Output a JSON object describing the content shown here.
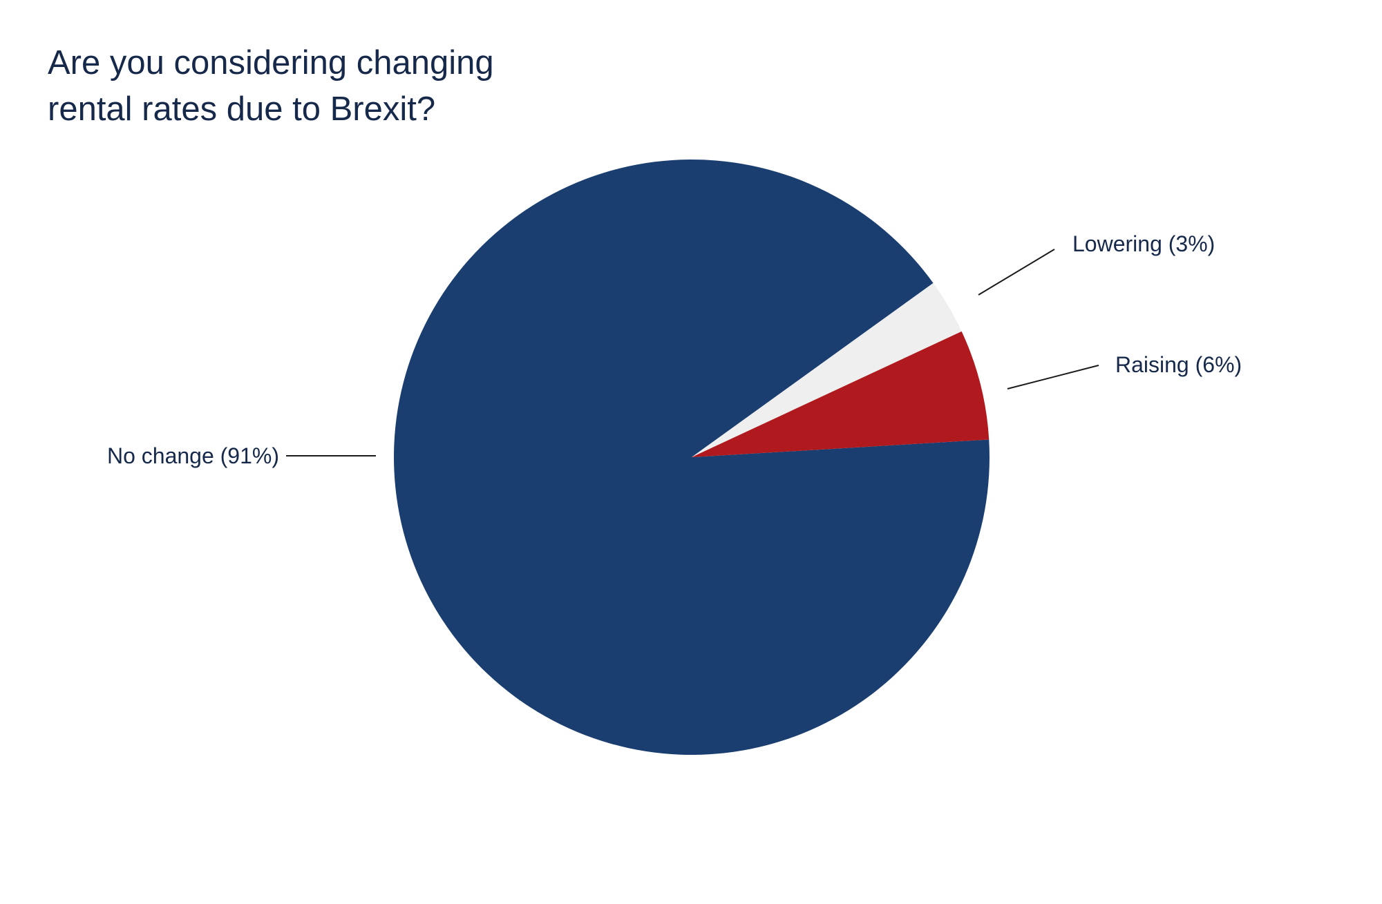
{
  "chart_data": {
    "type": "pie",
    "title": "Are you considering changing rental rates due to Brexit?",
    "title_lines": [
      "Are you considering changing",
      "rental rates due to Brexit?"
    ],
    "slices": [
      {
        "label": "No change (91%)",
        "category": "No change",
        "value": 91,
        "color": "#1b3e70"
      },
      {
        "label": "Lowering (3%)",
        "category": "Lowering",
        "value": 3,
        "color": "#efefef"
      },
      {
        "label": "Raising (6%)",
        "category": "Raising",
        "value": 6,
        "color": "#b0191d"
      }
    ],
    "legend": "none",
    "labels": "outside with leader lines"
  }
}
